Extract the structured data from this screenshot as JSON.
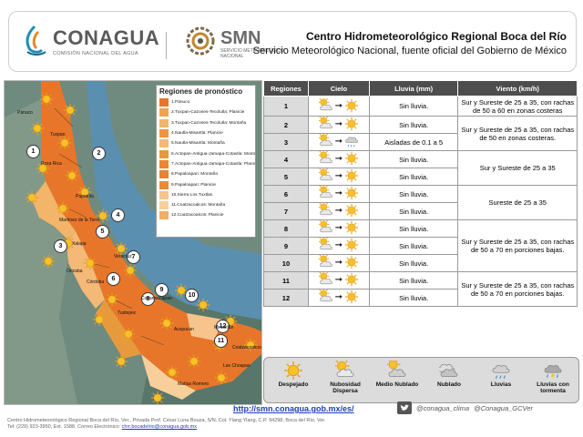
{
  "header": {
    "logo_conagua": "CONAGUA",
    "logo_conagua_sub": "COMISIÓN NACIONAL DEL AGUA",
    "logo_smn": "SMN",
    "logo_smn_sub": "SERVICIO METEOROLÓGICO NACIONAL",
    "title": "Centro Hidrometeorológico Regional Boca del Río",
    "subtitle": "Servicio Meteorológico Nacional, fuente oficial del Gobierno de México"
  },
  "map": {
    "legend_title": "Regiones de pronóstico",
    "legend_items": [
      {
        "label": "1.Pánuco",
        "color": "#e8762a"
      },
      {
        "label": "2.Tuxpan-Cazones-Tecolutla: Planicie",
        "color": "#f0a34b"
      },
      {
        "label": "3.Tuxpan-Cazones-Tecolutla: Montaña",
        "color": "#f2b56a"
      },
      {
        "label": "4.Nautla-Misantla: Planicie",
        "color": "#f1943d"
      },
      {
        "label": "5.Nautla-Misantla: Montaña",
        "color": "#f4b877"
      },
      {
        "label": "6.Actopan-Antigua-Jamapa-Cotaxtla: Montaña",
        "color": "#e79a3c"
      },
      {
        "label": "7.Actopan-Antigua-Jamapa-Cotaxtla: Planicie",
        "color": "#ef8431"
      },
      {
        "label": "8.Papaloapan: Montaña",
        "color": "#e8822e"
      },
      {
        "label": "9.Papaloapan: Planicie",
        "color": "#ec8a33"
      },
      {
        "label": "10.Sierra Los Tuxtlas",
        "color": "#f6c48c"
      },
      {
        "label": "11.Coatzacoalcos: Montaña",
        "color": "#f8cf9b"
      },
      {
        "label": "12.Coatzacoalcos: Planicie",
        "color": "#f5ad62"
      }
    ],
    "place_labels": [
      "Pánuco",
      "Tuxpan",
      "Poza Rica",
      "Papantla",
      "Martínez de la Torre",
      "Xalapa",
      "Veracruz",
      "Córdoba",
      "Orizaba",
      "Cosamaloapan",
      "Tuxtepec",
      "Acayucan",
      "Minatitlán",
      "Coatzacoalcos",
      "Las Choapas",
      "Matías Romero"
    ],
    "region_markers": [
      "1",
      "2",
      "3",
      "4",
      "5",
      "6",
      "7",
      "8",
      "9",
      "10",
      "11",
      "12"
    ]
  },
  "table": {
    "headers": [
      "Regiones",
      "Cielo",
      "Lluvia (mm)",
      "Viento (km/h)"
    ],
    "rows": [
      {
        "region": "1",
        "from": "partly",
        "to": "sunny",
        "rain": "Sin lluvia."
      },
      {
        "region": "2",
        "from": "partly",
        "to": "sunny",
        "rain": "Sin lluvia."
      },
      {
        "region": "3",
        "from": "partly",
        "to": "drizzle",
        "rain": "Aisladas de 0.1 a 5"
      },
      {
        "region": "4",
        "from": "partly",
        "to": "sunny",
        "rain": "Sin lluvia."
      },
      {
        "region": "5",
        "from": "partly",
        "to": "sunny",
        "rain": "Sin lluvia."
      },
      {
        "region": "6",
        "from": "partly",
        "to": "sunny",
        "rain": "Sin lluvia."
      },
      {
        "region": "7",
        "from": "partly",
        "to": "sunny",
        "rain": "Sin lluvia."
      },
      {
        "region": "8",
        "from": "partly",
        "to": "sunny",
        "rain": "Sin lluvia."
      },
      {
        "region": "9",
        "from": "partly",
        "to": "sunny",
        "rain": "Sin lluvia."
      },
      {
        "region": "10",
        "from": "partly",
        "to": "sunny",
        "rain": "Sin lluvia."
      },
      {
        "region": "11",
        "from": "partly",
        "to": "sunny",
        "rain": "Sin lluvia."
      },
      {
        "region": "12",
        "from": "partly",
        "to": "sunny",
        "rain": "Sin lluvia."
      }
    ],
    "wind_groups": [
      {
        "text": "Sur y Sureste de 25 a 35, con rachas de 50 a 60 en zonas costeras",
        "rows": 1
      },
      {
        "text": "Sur y Sureste de 25 a 35, con rachas de 50 en zonas costeras.",
        "rows": 2
      },
      {
        "text": "Sur y Sureste de 25 a 35",
        "rows": 2
      },
      {
        "text": "Sureste de 25 a 35",
        "rows": 2
      },
      {
        "text": "Sur y Sureste de 25 a 35, con rachas de 50 a 70 en porciones bajas.",
        "rows": 3
      },
      {
        "text": "Sur y Sureste de 25 a 35, con rachas de 50 a 70 en porciones bajas.",
        "rows": 2
      }
    ]
  },
  "sky_legend": [
    {
      "icon": "sunny",
      "label": "Despejado"
    },
    {
      "icon": "partly",
      "label": "Nubosidad Dispersa"
    },
    {
      "icon": "mostly",
      "label": "Medio Nublado"
    },
    {
      "icon": "cloudy",
      "label": "Nublado"
    },
    {
      "icon": "rain",
      "label": "Lluvias"
    },
    {
      "icon": "storm",
      "label": "Lluvias con tormenta"
    }
  ],
  "footer": {
    "url": "http://smn.conagua.gob.mx/es/",
    "twitter1": "@conagua_clima",
    "twitter2": "@Conagua_GCVer",
    "address_line1": "Centro Hidrometeorológico Regional Boca del Río, Ver., Privada Prof. César Luna Bouza, S/N, Col. Ylang Ylang, C.P. 94298, Boca del Río, Ver.",
    "address_line2_prefix": "Tel: (229) 923-3950, Ext. 1588. Correo Electrónico: ",
    "email": "chrr.bocadelrio@conagua.gob.mx"
  }
}
